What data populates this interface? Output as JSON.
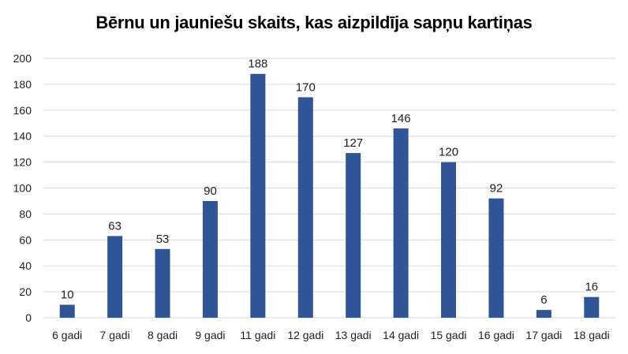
{
  "chart_data": {
    "type": "bar",
    "title": "Bērnu un jauniešu skaits, kas aizpildīja sapņu kartiņas",
    "xlabel": "",
    "ylabel": "",
    "categories": [
      "6 gadi",
      "7 gadi",
      "8 gadi",
      "9 gadi",
      "11 gadi",
      "12 gadi",
      "13 gadi",
      "14 gadi",
      "15 gadi",
      "16 gadi",
      "17 gadi",
      "18 gadi"
    ],
    "values": [
      10,
      63,
      53,
      90,
      188,
      170,
      127,
      146,
      120,
      92,
      6,
      16
    ],
    "data_labels": [
      "10",
      "63",
      "53",
      "90",
      "188",
      "170",
      "127",
      "146",
      "120",
      "92",
      "6",
      "16"
    ],
    "ylim": [
      0,
      200
    ],
    "yticks": [
      "0",
      "20",
      "40",
      "60",
      "80",
      "100",
      "120",
      "140",
      "160",
      "180",
      "200"
    ],
    "grid": true,
    "legend": "none",
    "bar_color": "#2F5597",
    "grid_color": "#D9D9D9"
  }
}
